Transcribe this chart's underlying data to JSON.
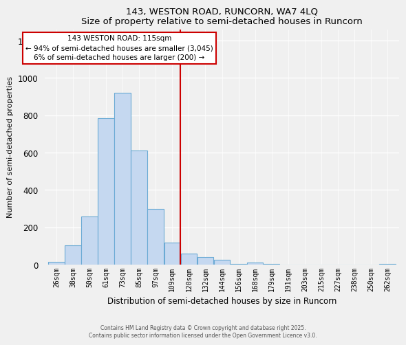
{
  "title": "143, WESTON ROAD, RUNCORN, WA7 4LQ",
  "subtitle": "Size of property relative to semi-detached houses in Runcorn",
  "xlabel": "Distribution of semi-detached houses by size in Runcorn",
  "ylabel": "Number of semi-detached properties",
  "bin_labels": [
    "26sqm",
    "38sqm",
    "50sqm",
    "61sqm",
    "73sqm",
    "85sqm",
    "97sqm",
    "109sqm",
    "120sqm",
    "132sqm",
    "144sqm",
    "156sqm",
    "168sqm",
    "179sqm",
    "191sqm",
    "203sqm",
    "215sqm",
    "227sqm",
    "238sqm",
    "250sqm",
    "262sqm"
  ],
  "bar_heights": [
    15,
    105,
    260,
    785,
    920,
    610,
    300,
    120,
    60,
    40,
    25,
    5,
    10,
    5,
    0,
    0,
    0,
    0,
    0,
    0,
    5
  ],
  "bar_color": "#c5d8f0",
  "bar_edge_color": "#6aaad4",
  "vline_color": "#cc0000",
  "annotation_title": "143 WESTON ROAD: 115sqm",
  "annotation_line1": "← 94% of semi-detached houses are smaller (3,045)",
  "annotation_line2": "6% of semi-detached houses are larger (200) →",
  "annotation_box_color": "#ffffff",
  "annotation_box_edge": "#cc0000",
  "ylim": [
    0,
    1260
  ],
  "yticks": [
    0,
    200,
    400,
    600,
    800,
    1000,
    1200
  ],
  "footer_line1": "Contains HM Land Registry data © Crown copyright and database right 2025.",
  "footer_line2": "Contains public sector information licensed under the Open Government Licence v3.0.",
  "background_color": "#f0f0f0",
  "grid_color": "#ffffff"
}
